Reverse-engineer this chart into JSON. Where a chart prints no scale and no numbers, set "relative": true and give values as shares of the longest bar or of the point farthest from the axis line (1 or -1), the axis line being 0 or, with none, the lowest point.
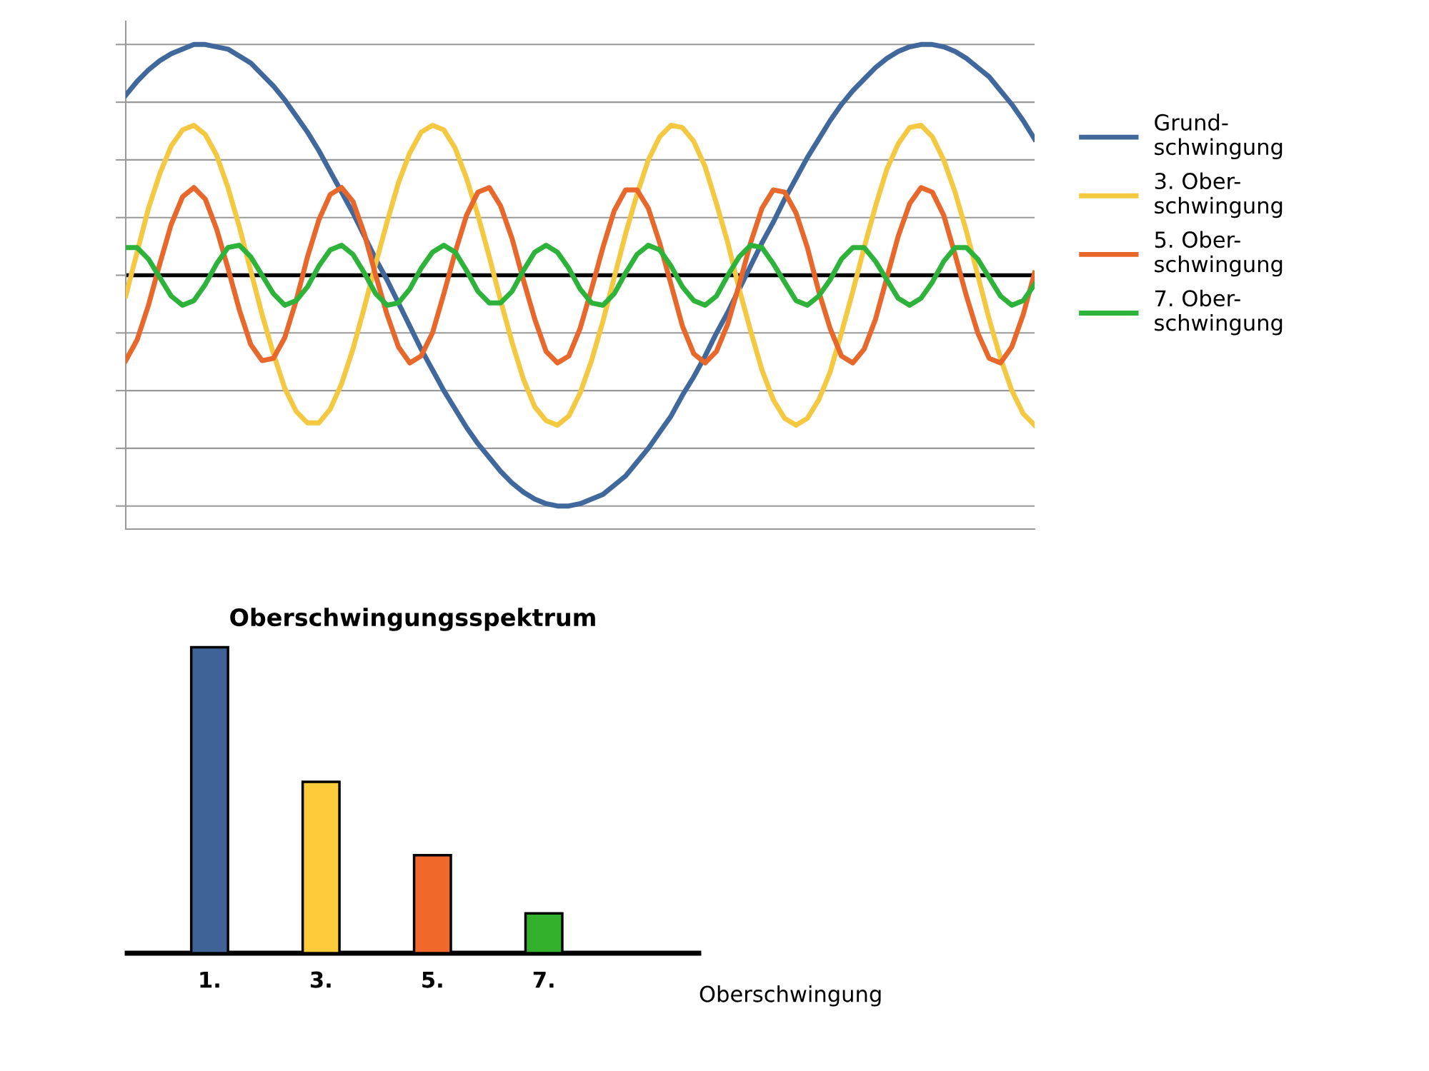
{
  "chart_data": [
    {
      "type": "line",
      "relative": true,
      "grid": "y",
      "legend": "right",
      "line_style": "solid",
      "categories": [
        null,
        null,
        null,
        null,
        null,
        null,
        null,
        null,
        null,
        null,
        null,
        null,
        null,
        null,
        null,
        null,
        null,
        null,
        null,
        null,
        null,
        null,
        null,
        null,
        null,
        null,
        null,
        null,
        null,
        null,
        null,
        null,
        null,
        null,
        null,
        null,
        null,
        null,
        null,
        null,
        null,
        null,
        null,
        null,
        null,
        null,
        null,
        null,
        null,
        null,
        null,
        null,
        null,
        null,
        null,
        null,
        null,
        null,
        null,
        null,
        null,
        null,
        null,
        null,
        null,
        null,
        null,
        null,
        null,
        null,
        null,
        null,
        null,
        null,
        null,
        null,
        null,
        null,
        null,
        null,
        null
      ],
      "series": [
        {
          "name": "Grund-\nschwingung",
          "color": "#41689c",
          "values": [
            0.78,
            0.84,
            0.89,
            0.93,
            0.96,
            0.98,
            1.0,
            1.0,
            0.99,
            0.98,
            0.95,
            0.92,
            0.87,
            0.82,
            0.76,
            0.69,
            0.62,
            0.54,
            0.45,
            0.36,
            0.27,
            0.17,
            0.07,
            -0.02,
            -0.12,
            -0.22,
            -0.32,
            -0.41,
            -0.5,
            -0.58,
            -0.66,
            -0.73,
            -0.79,
            -0.85,
            -0.9,
            -0.94,
            -0.97,
            -0.99,
            -1.0,
            -1.0,
            -0.99,
            -0.97,
            -0.95,
            -0.91,
            -0.87,
            -0.81,
            -0.75,
            -0.68,
            -0.61,
            -0.52,
            -0.44,
            -0.35,
            -0.25,
            -0.16,
            -0.06,
            0.04,
            0.14,
            0.23,
            0.33,
            0.42,
            0.51,
            0.59,
            0.67,
            0.74,
            0.8,
            0.85,
            0.9,
            0.94,
            0.97,
            0.99,
            1.0,
            1.0,
            0.99,
            0.97,
            0.94,
            0.9,
            0.86,
            0.8,
            0.74,
            0.67,
            0.59
          ]
        },
        {
          "name": "3. Ober-\nschwingung",
          "color": "#f5c842",
          "values": [
            -0.09,
            0.1,
            0.29,
            0.44,
            0.56,
            0.63,
            0.65,
            0.61,
            0.52,
            0.38,
            0.21,
            0.02,
            -0.17,
            -0.34,
            -0.49,
            -0.59,
            -0.64,
            -0.64,
            -0.58,
            -0.47,
            -0.32,
            -0.14,
            0.05,
            0.23,
            0.4,
            0.53,
            0.62,
            0.65,
            0.63,
            0.55,
            0.42,
            0.26,
            0.08,
            -0.11,
            -0.29,
            -0.45,
            -0.57,
            -0.63,
            -0.65,
            -0.61,
            -0.51,
            -0.37,
            -0.2,
            -0.01,
            0.18,
            0.35,
            0.5,
            0.6,
            0.65,
            0.64,
            0.58,
            0.47,
            0.31,
            0.14,
            -0.06,
            -0.24,
            -0.41,
            -0.54,
            -0.62,
            -0.65,
            -0.62,
            -0.54,
            -0.42,
            -0.25,
            -0.07,
            0.12,
            0.3,
            0.46,
            0.57,
            0.64,
            0.65,
            0.6,
            0.5,
            0.36,
            0.19,
            0.0,
            -0.19,
            -0.36,
            -0.5,
            -0.6,
            -0.65
          ]
        },
        {
          "name": "5. Ober-\nschwingung",
          "color": "#e8672a",
          "values": [
            -0.37,
            -0.28,
            -0.13,
            0.05,
            0.22,
            0.34,
            0.38,
            0.33,
            0.2,
            0.03,
            -0.15,
            -0.3,
            -0.37,
            -0.36,
            -0.27,
            -0.11,
            0.08,
            0.24,
            0.35,
            0.38,
            0.32,
            0.18,
            0.0,
            -0.17,
            -0.31,
            -0.38,
            -0.35,
            -0.25,
            -0.08,
            0.1,
            0.26,
            0.36,
            0.38,
            0.3,
            0.16,
            -0.02,
            -0.19,
            -0.33,
            -0.38,
            -0.35,
            -0.23,
            -0.06,
            0.12,
            0.28,
            0.37,
            0.37,
            0.29,
            0.14,
            -0.04,
            -0.22,
            -0.34,
            -0.38,
            -0.33,
            -0.21,
            -0.04,
            0.14,
            0.29,
            0.37,
            0.36,
            0.27,
            0.12,
            -0.07,
            -0.23,
            -0.35,
            -0.38,
            -0.32,
            -0.19,
            -0.01,
            0.17,
            0.31,
            0.38,
            0.36,
            0.26,
            0.09,
            -0.09,
            -0.25,
            -0.36,
            -0.38,
            -0.31,
            -0.17,
            0.01
          ]
        },
        {
          "name": "7. Ober-\nschwingung",
          "color": "#2db33a",
          "values": [
            0.12,
            0.12,
            0.07,
            -0.01,
            -0.09,
            -0.13,
            -0.11,
            -0.04,
            0.05,
            0.12,
            0.13,
            0.08,
            0.0,
            -0.08,
            -0.13,
            -0.11,
            -0.05,
            0.04,
            0.11,
            0.13,
            0.09,
            0.01,
            -0.08,
            -0.13,
            -0.12,
            -0.06,
            0.03,
            0.1,
            0.13,
            0.1,
            0.02,
            -0.07,
            -0.12,
            -0.12,
            -0.07,
            0.02,
            0.1,
            0.13,
            0.1,
            0.03,
            -0.06,
            -0.12,
            -0.13,
            -0.08,
            0.01,
            0.09,
            0.13,
            0.11,
            0.04,
            -0.05,
            -0.11,
            -0.13,
            -0.09,
            0.0,
            0.08,
            0.13,
            0.12,
            0.05,
            -0.03,
            -0.11,
            -0.13,
            -0.09,
            -0.02,
            0.07,
            0.12,
            0.12,
            0.06,
            -0.02,
            -0.1,
            -0.13,
            -0.1,
            -0.03,
            0.06,
            0.12,
            0.12,
            0.07,
            -0.01,
            -0.09,
            -0.13,
            -0.11,
            -0.04
          ]
        }
      ]
    },
    {
      "type": "bar",
      "relative": true,
      "title": "Oberschwingungsspektrum",
      "xlabel": "Oberschwingung",
      "categories": [
        "1.",
        "3.",
        "5.",
        "7."
      ],
      "values": [
        1.0,
        0.56,
        0.32,
        0.13
      ],
      "colors": [
        "#3f6396",
        "#fecb3a",
        "#f0692a",
        "#33b02c"
      ]
    }
  ]
}
